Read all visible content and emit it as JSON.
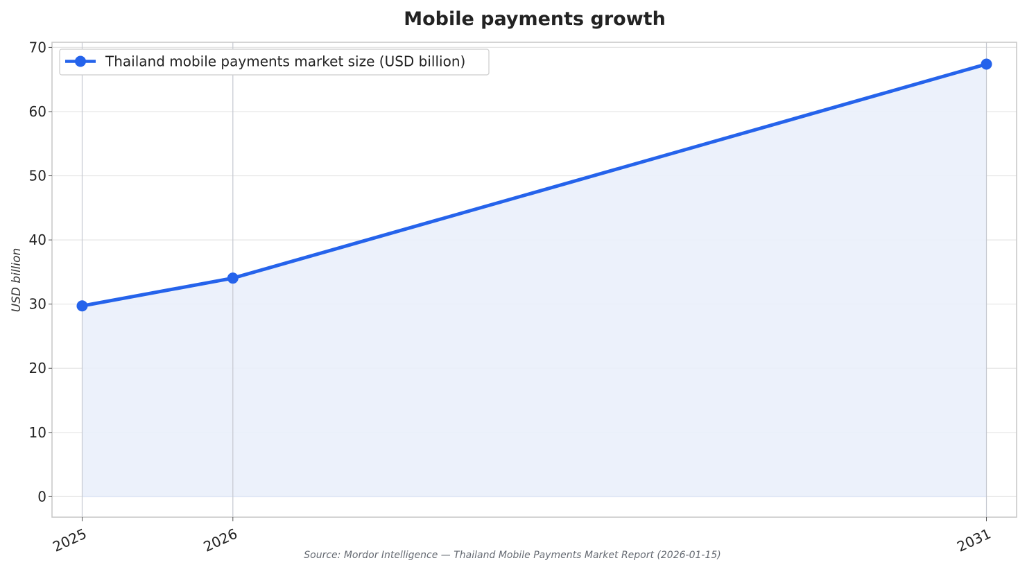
{
  "chart_data": {
    "type": "area",
    "title": "Mobile payments growth",
    "xlabel": "",
    "ylabel": "USD billion",
    "x": [
      "2025",
      "2026",
      "2031"
    ],
    "x_numeric": [
      2025,
      2026,
      2031
    ],
    "series": [
      {
        "name": "Thailand mobile payments market size (USD billion)",
        "values": [
          29.72,
          34.05,
          67.4
        ]
      }
    ],
    "ylim": [
      -3.2,
      70.8
    ],
    "yticks": [
      0,
      10,
      20,
      30,
      40,
      50,
      60,
      70
    ],
    "xticks": [
      "2025",
      "2026",
      "2031"
    ],
    "grid": true,
    "legend_position": "top-left",
    "source": "Source: Mordor Intelligence — Thailand Mobile Payments Market Report (2026-01-15)",
    "colors": {
      "line": "#2563eb",
      "fill": "#eaf0fb",
      "grid": "#e6e6e6",
      "vgrid": "#c5c8d0",
      "frame": "#c6c6c6"
    }
  }
}
